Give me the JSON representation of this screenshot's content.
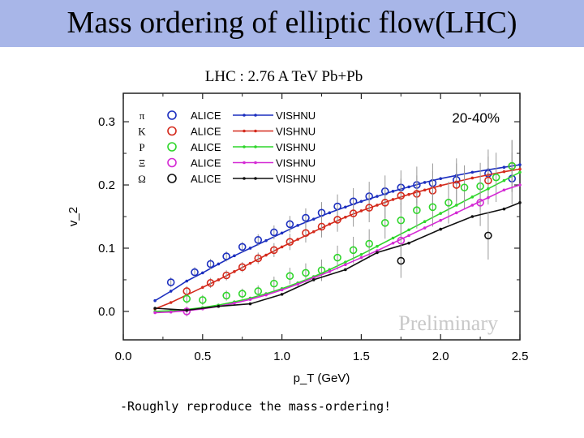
{
  "slide": {
    "title": "Mass ordering of elliptic flow(LHC)",
    "subtitle": "LHC : 2.76 A TeV Pb+Pb",
    "note": "-Roughly reproduce the mass-ordering!",
    "title_bar_color": "#a8b6e8"
  },
  "chart_data": {
    "type": "scatter",
    "title": "",
    "xlabel": "p_T (GeV)",
    "ylabel": "v_2",
    "xlim": [
      0.0,
      2.5
    ],
    "ylim": [
      -0.045,
      0.345
    ],
    "xticks": [
      "0.0",
      "0.5",
      "1.0",
      "1.5",
      "2.0",
      "2.5"
    ],
    "yticks": [
      "0.0",
      "0.1",
      "0.2",
      "0.3"
    ],
    "centrality": "20-40%",
    "watermark": "Preliminary",
    "legend_position": "top-left",
    "series": [
      {
        "name": "π",
        "data_label": "ALICE",
        "model_label": "VISHNU",
        "color": "#1c2fbf",
        "data": [
          [
            0.3,
            0.046
          ],
          [
            0.45,
            0.062
          ],
          [
            0.55,
            0.075
          ],
          [
            0.65,
            0.087
          ],
          [
            0.75,
            0.102
          ],
          [
            0.85,
            0.113
          ],
          [
            0.95,
            0.125
          ],
          [
            1.05,
            0.138
          ],
          [
            1.15,
            0.148
          ],
          [
            1.25,
            0.156
          ],
          [
            1.35,
            0.166
          ],
          [
            1.45,
            0.174
          ],
          [
            1.55,
            0.182
          ],
          [
            1.65,
            0.19
          ],
          [
            1.75,
            0.196
          ],
          [
            1.85,
            0.2
          ],
          [
            1.95,
            0.203
          ],
          [
            2.1,
            0.208
          ],
          [
            2.3,
            0.218
          ],
          [
            2.45,
            0.21
          ]
        ],
        "model": [
          [
            0.2,
            0.017
          ],
          [
            0.3,
            0.032
          ],
          [
            0.4,
            0.048
          ],
          [
            0.5,
            0.061
          ],
          [
            0.6,
            0.075
          ],
          [
            0.7,
            0.088
          ],
          [
            0.8,
            0.1
          ],
          [
            0.9,
            0.112
          ],
          [
            1.0,
            0.124
          ],
          [
            1.1,
            0.136
          ],
          [
            1.2,
            0.146
          ],
          [
            1.3,
            0.156
          ],
          [
            1.4,
            0.165
          ],
          [
            1.5,
            0.174
          ],
          [
            1.6,
            0.182
          ],
          [
            1.7,
            0.19
          ],
          [
            1.8,
            0.197
          ],
          [
            1.9,
            0.204
          ],
          [
            2.0,
            0.21
          ],
          [
            2.1,
            0.215
          ],
          [
            2.2,
            0.22
          ],
          [
            2.3,
            0.224
          ],
          [
            2.4,
            0.228
          ],
          [
            2.5,
            0.232
          ]
        ]
      },
      {
        "name": "K",
        "data_label": "ALICE",
        "model_label": "VISHNU",
        "color": "#d42a1c",
        "data": [
          [
            0.4,
            0.032
          ],
          [
            0.55,
            0.045
          ],
          [
            0.65,
            0.057
          ],
          [
            0.75,
            0.07
          ],
          [
            0.85,
            0.084
          ],
          [
            0.95,
            0.097
          ],
          [
            1.05,
            0.11
          ],
          [
            1.15,
            0.124
          ],
          [
            1.25,
            0.134
          ],
          [
            1.35,
            0.145
          ],
          [
            1.45,
            0.155
          ],
          [
            1.55,
            0.164
          ],
          [
            1.65,
            0.172
          ],
          [
            1.75,
            0.183
          ],
          [
            1.85,
            0.186
          ],
          [
            1.95,
            0.191
          ],
          [
            2.1,
            0.2
          ],
          [
            2.3,
            0.207
          ],
          [
            2.45,
            0.23
          ]
        ],
        "model": [
          [
            0.2,
            0.004
          ],
          [
            0.3,
            0.014
          ],
          [
            0.4,
            0.026
          ],
          [
            0.5,
            0.038
          ],
          [
            0.6,
            0.05
          ],
          [
            0.7,
            0.063
          ],
          [
            0.8,
            0.076
          ],
          [
            0.9,
            0.089
          ],
          [
            1.0,
            0.102
          ],
          [
            1.1,
            0.114
          ],
          [
            1.2,
            0.126
          ],
          [
            1.3,
            0.138
          ],
          [
            1.4,
            0.149
          ],
          [
            1.5,
            0.159
          ],
          [
            1.6,
            0.168
          ],
          [
            1.7,
            0.177
          ],
          [
            1.8,
            0.185
          ],
          [
            1.9,
            0.192
          ],
          [
            2.0,
            0.199
          ],
          [
            2.1,
            0.205
          ],
          [
            2.2,
            0.211
          ],
          [
            2.3,
            0.216
          ],
          [
            2.4,
            0.221
          ],
          [
            2.5,
            0.225
          ]
        ]
      },
      {
        "name": "P",
        "data_label": "ALICE",
        "model_label": "VISHNU",
        "color": "#2fd62b",
        "data": [
          [
            0.4,
            0.02
          ],
          [
            0.5,
            0.018
          ],
          [
            0.65,
            0.025
          ],
          [
            0.75,
            0.028
          ],
          [
            0.85,
            0.032
          ],
          [
            0.95,
            0.044
          ],
          [
            1.05,
            0.056
          ],
          [
            1.15,
            0.061
          ],
          [
            1.25,
            0.065
          ],
          [
            1.35,
            0.085
          ],
          [
            1.45,
            0.097
          ],
          [
            1.55,
            0.107
          ],
          [
            1.65,
            0.14
          ],
          [
            1.75,
            0.144
          ],
          [
            1.85,
            0.16
          ],
          [
            1.95,
            0.165
          ],
          [
            2.05,
            0.172
          ],
          [
            2.15,
            0.196
          ],
          [
            2.25,
            0.198
          ],
          [
            2.35,
            0.212
          ],
          [
            2.45,
            0.23
          ]
        ],
        "model": [
          [
            0.2,
            0.0
          ],
          [
            0.3,
            0.001
          ],
          [
            0.4,
            0.003
          ],
          [
            0.5,
            0.006
          ],
          [
            0.6,
            0.01
          ],
          [
            0.7,
            0.015
          ],
          [
            0.8,
            0.021
          ],
          [
            0.9,
            0.028
          ],
          [
            1.0,
            0.036
          ],
          [
            1.1,
            0.045
          ],
          [
            1.2,
            0.055
          ],
          [
            1.3,
            0.066
          ],
          [
            1.4,
            0.078
          ],
          [
            1.5,
            0.09
          ],
          [
            1.6,
            0.103
          ],
          [
            1.7,
            0.116
          ],
          [
            1.8,
            0.129
          ],
          [
            1.9,
            0.142
          ],
          [
            2.0,
            0.155
          ],
          [
            2.1,
            0.168
          ],
          [
            2.2,
            0.181
          ],
          [
            2.3,
            0.194
          ],
          [
            2.4,
            0.207
          ],
          [
            2.5,
            0.22
          ]
        ]
      },
      {
        "name": "Ξ",
        "data_label": "ALICE",
        "model_label": "VISHNU",
        "color": "#d42ad4",
        "data": [
          [
            0.4,
            0.0
          ],
          [
            1.75,
            0.112
          ],
          [
            2.25,
            0.172
          ]
        ],
        "model": [
          [
            0.2,
            -0.002
          ],
          [
            0.3,
            -0.001
          ],
          [
            0.4,
            0.001
          ],
          [
            0.5,
            0.004
          ],
          [
            0.6,
            0.008
          ],
          [
            0.7,
            0.013
          ],
          [
            0.8,
            0.019
          ],
          [
            0.9,
            0.026
          ],
          [
            1.0,
            0.034
          ],
          [
            1.1,
            0.043
          ],
          [
            1.2,
            0.053
          ],
          [
            1.3,
            0.063
          ],
          [
            1.4,
            0.074
          ],
          [
            1.5,
            0.085
          ],
          [
            1.6,
            0.096
          ],
          [
            1.7,
            0.108
          ],
          [
            1.8,
            0.12
          ],
          [
            1.9,
            0.132
          ],
          [
            2.0,
            0.144
          ],
          [
            2.1,
            0.156
          ],
          [
            2.2,
            0.168
          ],
          [
            2.3,
            0.18
          ],
          [
            2.4,
            0.192
          ],
          [
            2.5,
            0.2
          ]
        ]
      },
      {
        "name": "Ω",
        "data_label": "ALICE",
        "model_label": "VISHNU",
        "color": "#111111",
        "data": [
          [
            1.75,
            0.08
          ],
          [
            2.3,
            0.12
          ]
        ],
        "model": [
          [
            0.2,
            0.005
          ],
          [
            0.4,
            0.002
          ],
          [
            0.6,
            0.008
          ],
          [
            0.8,
            0.012
          ],
          [
            1.0,
            0.027
          ],
          [
            1.2,
            0.05
          ],
          [
            1.4,
            0.066
          ],
          [
            1.6,
            0.093
          ],
          [
            1.8,
            0.108
          ],
          [
            2.0,
            0.13
          ],
          [
            2.2,
            0.15
          ],
          [
            2.4,
            0.162
          ],
          [
            2.5,
            0.172
          ]
        ]
      }
    ]
  }
}
